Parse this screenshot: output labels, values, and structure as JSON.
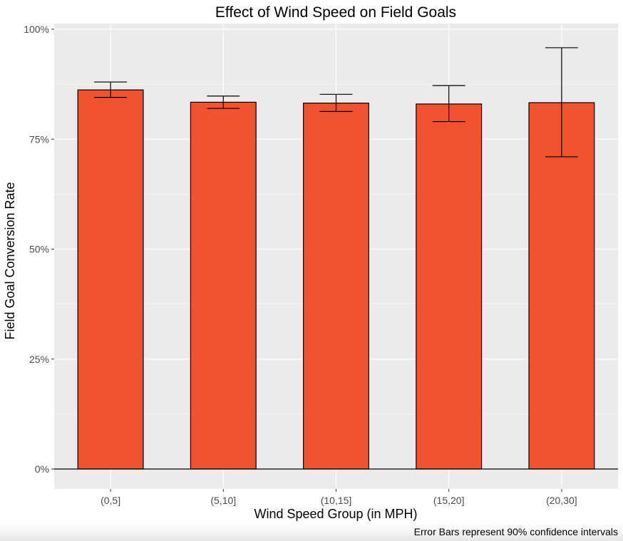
{
  "chart_data": {
    "type": "bar",
    "title": "Effect of Wind Speed on Field Goals",
    "xlabel": "Wind Speed Group (in MPH)",
    "ylabel": "Field Goal Conversion Rate",
    "caption": "Error Bars represent 90% confidence intervals",
    "categories": [
      "(0,5]",
      "(5,10]",
      "(10,15]",
      "(15,20]",
      "(20,30]"
    ],
    "values": [
      0.862,
      0.834,
      0.832,
      0.83,
      0.833
    ],
    "error_low": [
      0.845,
      0.82,
      0.813,
      0.79,
      0.71
    ],
    "error_high": [
      0.88,
      0.848,
      0.852,
      0.872,
      0.958
    ],
    "yticks": [
      0,
      0.25,
      0.5,
      0.75,
      1.0
    ],
    "ytick_labels": [
      "0%",
      "25%",
      "50%",
      "75%",
      "100%"
    ],
    "ylim": [
      -0.045,
      1.0
    ],
    "grid": true,
    "legend": "none",
    "colors": {
      "bar_fill": "#ef5330",
      "bar_stroke": "#000000",
      "panel_background": "#ebebeb",
      "grid": "#ffffff"
    }
  }
}
